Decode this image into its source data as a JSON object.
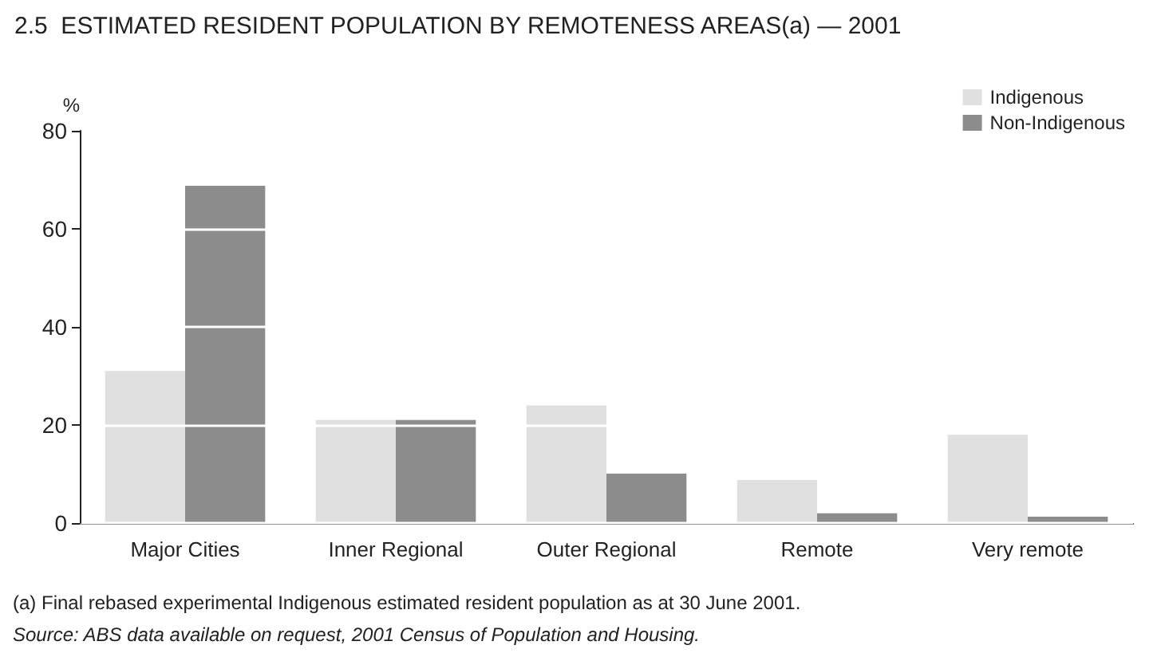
{
  "chart_data": {
    "type": "bar",
    "title": "2.5  ESTIMATED RESIDENT POPULATION BY REMOTENESS AREAS(a) — 2001",
    "ylabel": "%",
    "categories": [
      "Major Cities",
      "Inner Regional",
      "Outer Regional",
      "Remote",
      "Very remote"
    ],
    "series": [
      {
        "name": "Indigenous",
        "color": "#e0e0e0",
        "values": [
          31,
          21,
          24,
          8.8,
          18
        ]
      },
      {
        "name": "Non-Indigenous",
        "color": "#8c8c8c",
        "values": [
          68.8,
          21,
          10.1,
          2,
          1.3
        ]
      }
    ],
    "ylim": [
      0,
      80
    ],
    "yticks": [
      0,
      20,
      40,
      60,
      80
    ],
    "grid": "y",
    "legend": "top right",
    "annotations": [
      "(a) Final rebased experimental Indigenous estimated resident population as at 30 June 2001.",
      "Source: ABS data available on request, 2001 Census of Population and Housing."
    ]
  }
}
